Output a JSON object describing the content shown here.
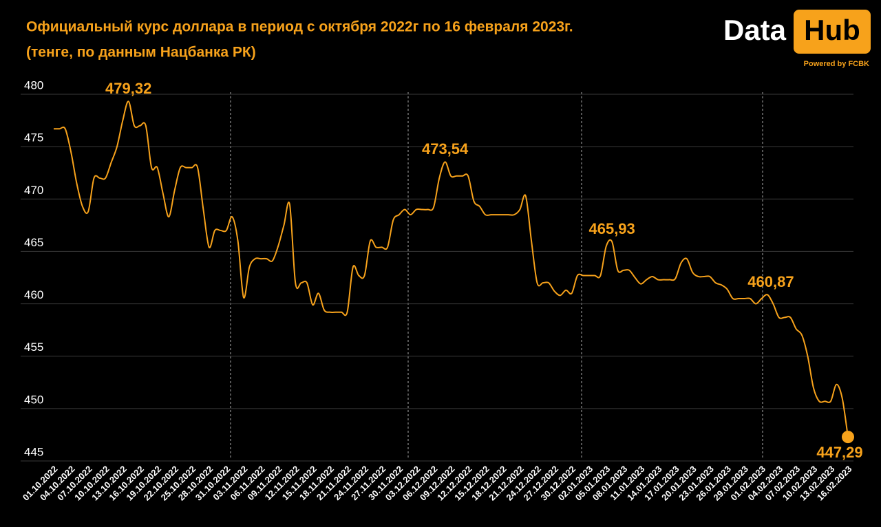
{
  "chart_data": {
    "type": "line",
    "title": "Официальный курс доллара в период с октября 2022г по 16 февраля 2023г.",
    "subtitle": "(тенге, по данным Нацбанка РК)",
    "categories": [
      "01.10.2022",
      null,
      null,
      "04.10.2022",
      null,
      null,
      "07.10.2022",
      null,
      null,
      "10.10.2022",
      null,
      null,
      "13.10.2022",
      null,
      null,
      "16.10.2022",
      null,
      null,
      "19.10.2022",
      null,
      null,
      "22.10.2022",
      null,
      null,
      "25.10.2022",
      null,
      null,
      "28.10.2022",
      null,
      null,
      "31.10.2022",
      null,
      null,
      "03.11.2022",
      null,
      null,
      "06.11.2022",
      null,
      null,
      "09.11.2022",
      null,
      null,
      "12.11.2022",
      null,
      null,
      "15.11.2022",
      null,
      null,
      "18.11.2022",
      null,
      null,
      "21.11.2022",
      null,
      null,
      "24.11.2022",
      null,
      null,
      "27.11.2022",
      null,
      null,
      "30.11.2022",
      null,
      null,
      "03.12.2022",
      null,
      null,
      "06.12.2022",
      null,
      null,
      "09.12.2022",
      null,
      null,
      "12.12.2022",
      null,
      null,
      "15.12.2022",
      null,
      null,
      "18.12.2022",
      null,
      null,
      "21.12.2022",
      null,
      null,
      "24.12.2022",
      null,
      null,
      "27.12.2022",
      null,
      null,
      "30.12.2022",
      null,
      null,
      "02.01.2023",
      null,
      null,
      "05.01.2023",
      null,
      null,
      "08.01.2023",
      null,
      null,
      "11.01.2023",
      null,
      null,
      "14.01.2023",
      null,
      null,
      "17.01.2023",
      null,
      null,
      "20.01.2023",
      null,
      null,
      "23.01.2023",
      null,
      null,
      "26.01.2023",
      null,
      null,
      "29.01.2023",
      null,
      null,
      "01.02.2023",
      null,
      null,
      "04.02.2023",
      null,
      null,
      "07.02.2023",
      null,
      null,
      "10.02.2023",
      null,
      null,
      "13.02.2023",
      null,
      null,
      "16.02.2023"
    ],
    "values": [
      476.7,
      476.7,
      476.7,
      474.5,
      471.5,
      469.3,
      468.8,
      472.0,
      472.0,
      472.0,
      473.5,
      475.0,
      477.5,
      479.32,
      477.0,
      477.0,
      477.0,
      473.0,
      473.0,
      470.5,
      468.3,
      470.8,
      473.0,
      473.0,
      473.0,
      473.0,
      469.0,
      465.4,
      467.0,
      467.0,
      467.0,
      468.3,
      466.0,
      460.6,
      463.5,
      464.3,
      464.3,
      464.3,
      464.1,
      465.5,
      467.5,
      469.5,
      462.0,
      462.0,
      462.0,
      459.9,
      461.0,
      459.4,
      459.2,
      459.2,
      459.2,
      459.2,
      463.5,
      462.7,
      462.7,
      466.0,
      465.4,
      465.4,
      465.4,
      468.0,
      468.5,
      469.0,
      468.5,
      469.0,
      469.0,
      469.0,
      469.2,
      472.0,
      473.54,
      472.2,
      472.2,
      472.2,
      472.2,
      469.8,
      469.3,
      468.5,
      468.5,
      468.5,
      468.5,
      468.5,
      468.5,
      469.0,
      470.3,
      466.0,
      462.0,
      462.0,
      462.0,
      461.2,
      460.8,
      461.3,
      461.0,
      462.7,
      462.7,
      462.7,
      462.7,
      462.7,
      465.5,
      465.93,
      463.2,
      463.2,
      463.2,
      462.5,
      461.9,
      462.3,
      462.6,
      462.3,
      462.3,
      462.3,
      462.4,
      463.9,
      464.3,
      463.0,
      462.6,
      462.6,
      462.6,
      462.0,
      461.8,
      461.4,
      460.5,
      460.5,
      460.5,
      460.5,
      460.0,
      460.5,
      460.87,
      460.0,
      458.7,
      458.7,
      458.7,
      457.6,
      457.0,
      455.0,
      452.0,
      450.7,
      450.7,
      450.7,
      452.3,
      451.0,
      447.29
    ],
    "value_labels": [
      null,
      null,
      null,
      null,
      null,
      null,
      null,
      null,
      null,
      null,
      null,
      null,
      null,
      "479,32",
      null,
      null,
      null,
      null,
      null,
      null,
      null,
      null,
      null,
      null,
      null,
      null,
      null,
      null,
      null,
      null,
      null,
      null,
      null,
      null,
      null,
      null,
      null,
      null,
      null,
      null,
      null,
      null,
      null,
      null,
      null,
      null,
      null,
      null,
      null,
      null,
      null,
      null,
      null,
      null,
      null,
      null,
      null,
      null,
      null,
      null,
      null,
      null,
      null,
      null,
      null,
      null,
      null,
      null,
      "473,54",
      null,
      null,
      null,
      null,
      null,
      null,
      null,
      null,
      null,
      null,
      null,
      null,
      null,
      null,
      null,
      null,
      null,
      null,
      null,
      null,
      null,
      null,
      null,
      null,
      null,
      null,
      null,
      null,
      "465,93",
      null,
      null,
      null,
      null,
      null,
      null,
      null,
      null,
      null,
      null,
      null,
      null,
      null,
      null,
      null,
      null,
      null,
      null,
      null,
      null,
      null,
      null,
      null,
      null,
      null,
      null,
      "460,87",
      null,
      null,
      null,
      null,
      null,
      null,
      null,
      null,
      null,
      null,
      null,
      null,
      null,
      "447,29"
    ],
    "color": "#f7a21b",
    "ylim": [
      445,
      480
    ],
    "yticks": [
      445,
      450,
      455,
      460,
      465,
      470,
      475,
      480
    ],
    "grid": true
  },
  "branding": {
    "left": "Data",
    "right": "Hub",
    "tagline": "Powered by FCBK"
  }
}
